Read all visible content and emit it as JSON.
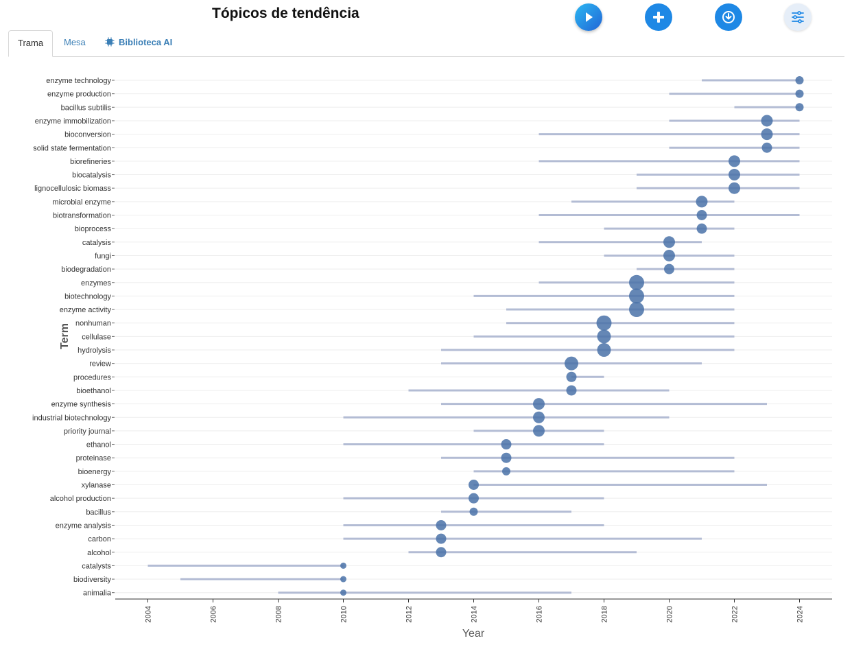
{
  "header": {
    "title": "Tópicos de tendência"
  },
  "toolbar": {
    "play_icon": "play-icon",
    "add_icon": "plus-icon",
    "download_icon": "download-icon",
    "settings_icon": "sliders-icon"
  },
  "tabs": [
    {
      "label": "Trama",
      "active": true
    },
    {
      "label": "Mesa",
      "active": false
    },
    {
      "label": "Biblioteca AI",
      "active": false,
      "icon": "chip-icon"
    }
  ],
  "colors": {
    "point": "#4a72a8",
    "range": "#b3bcd4",
    "accent": "#1e88e5",
    "tab_link": "#3b7fb6"
  },
  "chart_data": {
    "type": "scatter",
    "xlabel": "Year",
    "ylabel": "Term",
    "xlim": [
      2003,
      2025
    ],
    "x_ticks": [
      2004,
      2006,
      2008,
      2010,
      2012,
      2014,
      2016,
      2018,
      2020,
      2022,
      2024
    ],
    "grid": "horizontal",
    "items": [
      {
        "term": "enzyme technology",
        "start": 2021,
        "end": 2024,
        "year": 2024,
        "size": 1
      },
      {
        "term": "enzyme production",
        "start": 2020,
        "end": 2024,
        "year": 2024,
        "size": 1
      },
      {
        "term": "bacillus subtilis",
        "start": 2022,
        "end": 2024,
        "year": 2024,
        "size": 1
      },
      {
        "term": "enzyme immobilization",
        "start": 2020,
        "end": 2024,
        "year": 2023,
        "size": 3
      },
      {
        "term": "bioconversion",
        "start": 2016,
        "end": 2024,
        "year": 2023,
        "size": 3
      },
      {
        "term": "solid state fermentation",
        "start": 2020,
        "end": 2024,
        "year": 2023,
        "size": 2
      },
      {
        "term": "biorefineries",
        "start": 2016,
        "end": 2024,
        "year": 2022,
        "size": 3
      },
      {
        "term": "biocatalysis",
        "start": 2019,
        "end": 2024,
        "year": 2022,
        "size": 3
      },
      {
        "term": "lignocellulosic biomass",
        "start": 2019,
        "end": 2024,
        "year": 2022,
        "size": 3
      },
      {
        "term": "microbial enzyme",
        "start": 2017,
        "end": 2022,
        "year": 2021,
        "size": 3
      },
      {
        "term": "biotransformation",
        "start": 2016,
        "end": 2024,
        "year": 2021,
        "size": 2
      },
      {
        "term": "bioprocess",
        "start": 2018,
        "end": 2022,
        "year": 2021,
        "size": 2
      },
      {
        "term": "catalysis",
        "start": 2016,
        "end": 2021,
        "year": 2020,
        "size": 3
      },
      {
        "term": "fungi",
        "start": 2018,
        "end": 2022,
        "year": 2020,
        "size": 3
      },
      {
        "term": "biodegradation",
        "start": 2019,
        "end": 2022,
        "year": 2020,
        "size": 2
      },
      {
        "term": "enzymes",
        "start": 2016,
        "end": 2022,
        "year": 2019,
        "size": 5
      },
      {
        "term": "biotechnology",
        "start": 2014,
        "end": 2022,
        "year": 2019,
        "size": 5
      },
      {
        "term": "enzyme activity",
        "start": 2015,
        "end": 2022,
        "year": 2019,
        "size": 5
      },
      {
        "term": "nonhuman",
        "start": 2015,
        "end": 2022,
        "year": 2018,
        "size": 5
      },
      {
        "term": "cellulase",
        "start": 2014,
        "end": 2022,
        "year": 2018,
        "size": 4
      },
      {
        "term": "hydrolysis",
        "start": 2013,
        "end": 2022,
        "year": 2018,
        "size": 4
      },
      {
        "term": "review",
        "start": 2013,
        "end": 2021,
        "year": 2017,
        "size": 4
      },
      {
        "term": "procedures",
        "start": 2017,
        "end": 2018,
        "year": 2017,
        "size": 2
      },
      {
        "term": "bioethanol",
        "start": 2012,
        "end": 2020,
        "year": 2017,
        "size": 2
      },
      {
        "term": "enzyme synthesis",
        "start": 2013,
        "end": 2023,
        "year": 2016,
        "size": 3
      },
      {
        "term": "industrial biotechnology",
        "start": 2010,
        "end": 2020,
        "year": 2016,
        "size": 3
      },
      {
        "term": "priority journal",
        "start": 2014,
        "end": 2018,
        "year": 2016,
        "size": 3
      },
      {
        "term": "ethanol",
        "start": 2010,
        "end": 2018,
        "year": 2015,
        "size": 2
      },
      {
        "term": "proteinase",
        "start": 2013,
        "end": 2022,
        "year": 2015,
        "size": 2
      },
      {
        "term": "bioenergy",
        "start": 2014,
        "end": 2022,
        "year": 2015,
        "size": 1
      },
      {
        "term": "xylanase",
        "start": 2014,
        "end": 2023,
        "year": 2014,
        "size": 2
      },
      {
        "term": "alcohol production",
        "start": 2010,
        "end": 2018,
        "year": 2014,
        "size": 2
      },
      {
        "term": "bacillus",
        "start": 2013,
        "end": 2017,
        "year": 2014,
        "size": 1
      },
      {
        "term": "enzyme analysis",
        "start": 2010,
        "end": 2018,
        "year": 2013,
        "size": 2
      },
      {
        "term": "carbon",
        "start": 2010,
        "end": 2021,
        "year": 2013,
        "size": 2
      },
      {
        "term": "alcohol",
        "start": 2012,
        "end": 2019,
        "year": 2013,
        "size": 2
      },
      {
        "term": "catalysts",
        "start": 2004,
        "end": 2010,
        "year": 2010,
        "size": 0
      },
      {
        "term": "biodiversity",
        "start": 2005,
        "end": 2010,
        "year": 2010,
        "size": 0
      },
      {
        "term": "animalia",
        "start": 2008,
        "end": 2017,
        "year": 2010,
        "size": 0
      }
    ]
  }
}
